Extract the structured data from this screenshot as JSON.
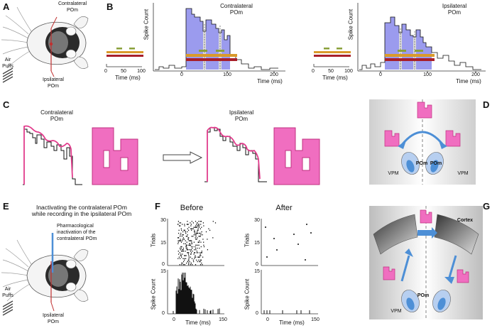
{
  "figure": {
    "panels": {
      "a": {
        "letter": "A",
        "label_contra": "Contralateral\nPOm",
        "label_ipsi": "Ipsilateral\nPOm",
        "label_air": "Air\nPuffs"
      },
      "b": {
        "letter": "B",
        "contra_title": "Contralateral\nPOm",
        "ipsi_title": "Ipsilateral\nPOm",
        "ylabel": "Spike Count",
        "xlabel": "Time (ms)",
        "stim_ticks": [
          "0",
          "50",
          "100"
        ],
        "psth_ticks": [
          "0",
          "100",
          "200"
        ]
      },
      "c": {
        "letter": "C",
        "contra_title": "Contralateral\nPOm",
        "ipsi_title": "Ipsilateral\nPOm"
      },
      "d": {
        "letter": "D",
        "pom_left": "POm",
        "pom_right": "POm",
        "vpm_left": "VPM",
        "vpm_right": "VPM"
      },
      "e": {
        "letter": "E",
        "title": "Inactivating the contralateral POm\nwhile recording in the ipsilateral POm",
        "annotation": "Pharmacological\ninactivation of the\ncontralateral POm",
        "label_air": "Air\nPuffs",
        "label_ipsi": "Ipsilateral\nPOm"
      },
      "f": {
        "letter": "F",
        "before_title": "Before",
        "after_title": "After",
        "raster_ylabel": "Trials",
        "psth_ylabel": "Spike Count",
        "xlabel": "Time (ms)",
        "raster_yticks": [
          "30",
          "15",
          "0"
        ],
        "psth_yticks": [
          "15",
          "0"
        ],
        "xticks": [
          "0",
          "150"
        ]
      },
      "g": {
        "letter": "G",
        "cortex": "Cortex",
        "pom": "POm",
        "vpm": "VPM"
      }
    },
    "colors": {
      "blue_fill": "#9b9bee",
      "pink": "#ee6fb8",
      "pink_fill": "#f06ec0",
      "stim_orange": "#d99a2b",
      "stim_red": "#a81f2a",
      "stim_green": "#8aa03a",
      "arrow_blue": "#4d8fd6"
    }
  }
}
